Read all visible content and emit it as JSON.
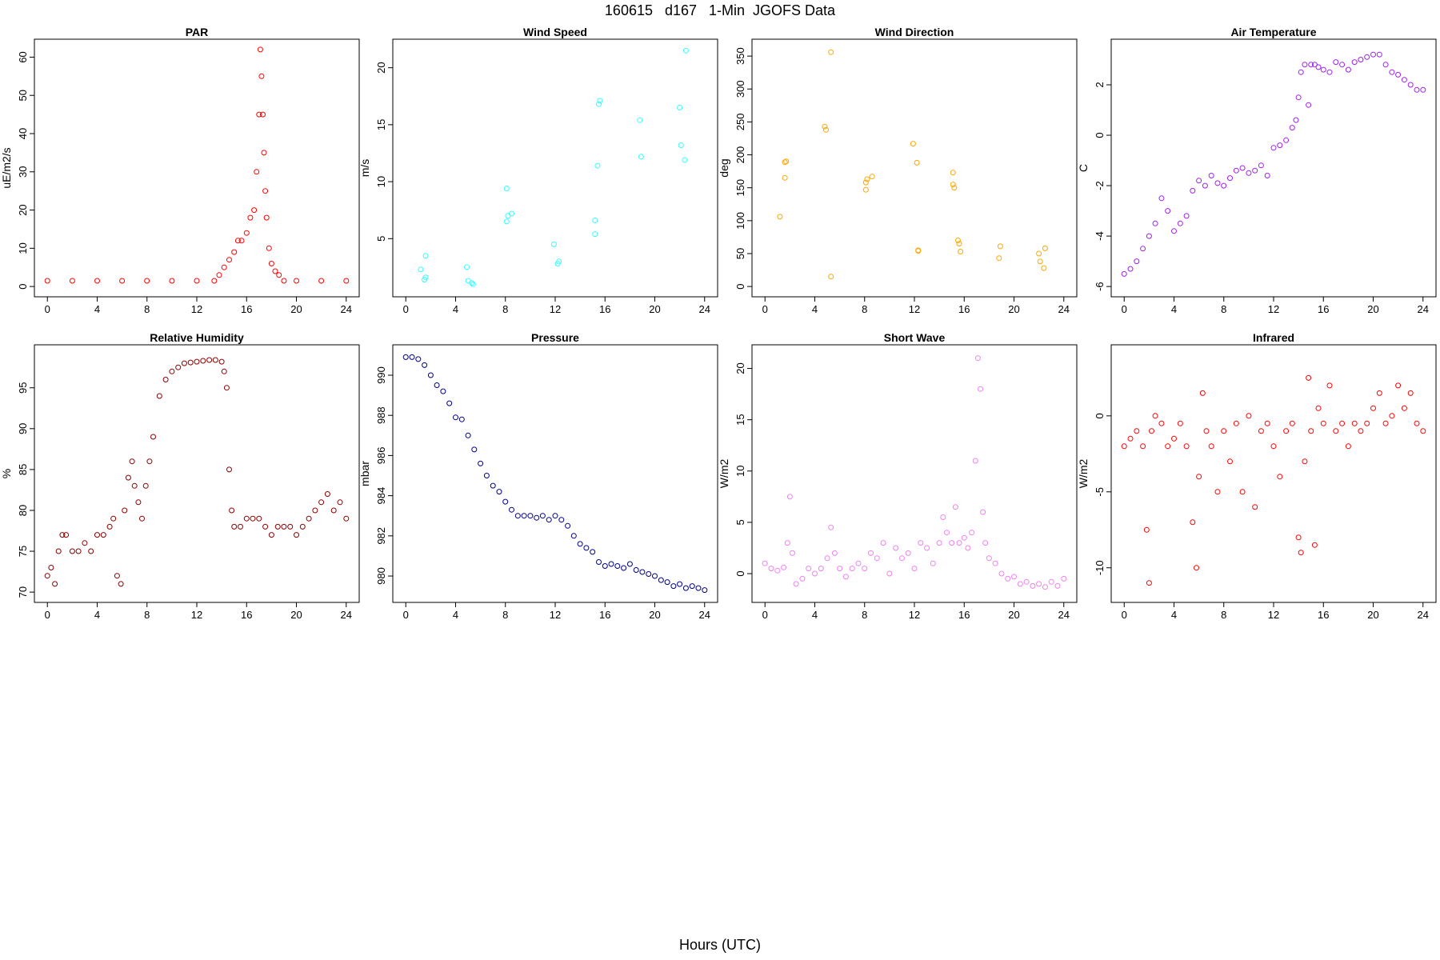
{
  "title": "160615   d167   1-Min  JGOFS Data",
  "xlabel": "Hours (UTC)",
  "chart_data": [
    {
      "type": "scatter",
      "title": "PAR",
      "ylabel": "uE/m2/s",
      "color": "#ff0000",
      "xlim": [
        0,
        24
      ],
      "ylim": [
        0,
        62
      ],
      "xticks": [
        0,
        4,
        8,
        12,
        16,
        20,
        24
      ],
      "yticks": [
        0,
        10,
        20,
        30,
        40,
        50,
        60
      ],
      "x": [
        0,
        2,
        4,
        6,
        8,
        10,
        12,
        13.4,
        13.8,
        14.2,
        14.6,
        15,
        15.3,
        15.6,
        16,
        16.3,
        16.6,
        16.8,
        17,
        17.1,
        17.2,
        17.3,
        17.4,
        17.5,
        17.6,
        17.8,
        18,
        18.3,
        18.6,
        19,
        20,
        22,
        24
      ],
      "y": [
        1.5,
        1.5,
        1.5,
        1.5,
        1.5,
        1.5,
        1.5,
        1.5,
        3,
        5,
        7,
        9,
        12,
        12,
        14,
        18,
        20,
        30,
        45,
        62,
        55,
        45,
        35,
        25,
        18,
        10,
        6,
        4,
        3,
        1.5,
        1.5,
        1.5,
        1.5
      ]
    },
    {
      "type": "scatter",
      "title": "Wind Speed",
      "ylabel": "m/s",
      "color": "#33ffff",
      "xlim": [
        0,
        24
      ],
      "ylim": [
        0.8,
        21.6
      ],
      "xticks": [
        0,
        4,
        8,
        12,
        16,
        20,
        24
      ],
      "yticks": [
        5,
        10,
        15,
        20
      ],
      "x": [
        1.2,
        1.6,
        1.6,
        1.5,
        4.9,
        5.0,
        5.3,
        5.4,
        8.1,
        8.1,
        8.2,
        8.5,
        11.9,
        12.2,
        12.3,
        15.2,
        15.2,
        15.4,
        15.5,
        15.6,
        18.8,
        18.9,
        22.0,
        22.1,
        22.4,
        22.5
      ],
      "y": [
        2.3,
        3.5,
        1.6,
        1.4,
        2.5,
        1.3,
        1.1,
        1.0,
        9.4,
        6.5,
        7.0,
        7.2,
        4.5,
        2.8,
        3.0,
        6.6,
        5.4,
        11.4,
        16.8,
        17.1,
        15.4,
        12.2,
        16.5,
        13.2,
        11.9,
        21.5
      ]
    },
    {
      "type": "scatter",
      "title": "Wind Direction",
      "ylabel": "deg",
      "color": "#ffa500",
      "xlim": [
        0,
        24
      ],
      "ylim": [
        0,
        360
      ],
      "xticks": [
        0,
        4,
        8,
        12,
        16,
        20,
        24
      ],
      "yticks": [
        0,
        50,
        100,
        150,
        200,
        250,
        300,
        350
      ],
      "x": [
        1.2,
        1.6,
        1.7,
        1.6,
        4.8,
        4.9,
        5.3,
        5.3,
        8.1,
        8.1,
        8.2,
        8.6,
        11.9,
        12.2,
        12.3,
        12.3,
        15.1,
        15.1,
        15.2,
        15.5,
        15.6,
        15.7,
        18.8,
        18.9,
        22.0,
        22.1,
        22.4,
        22.5
      ],
      "y": [
        106,
        165,
        190,
        189,
        243,
        238,
        15,
        356,
        147,
        158,
        163,
        167,
        217,
        188,
        55,
        54,
        173,
        155,
        150,
        70,
        65,
        53,
        43,
        61,
        50,
        38,
        28,
        58
      ]
    },
    {
      "type": "scatter",
      "title": "Air Temperature",
      "ylabel": "C",
      "color": "#a020f0",
      "xlim": [
        0,
        24
      ],
      "ylim": [
        -6,
        3.4
      ],
      "xticks": [
        0,
        4,
        8,
        12,
        16,
        20,
        24
      ],
      "yticks": [
        -6,
        -4,
        -2,
        0,
        2
      ],
      "x": [
        0,
        0.5,
        1,
        1.5,
        2,
        2.5,
        3,
        3.5,
        4,
        4.5,
        5,
        5.5,
        6,
        6.5,
        7,
        7.5,
        8,
        8.5,
        9,
        9.5,
        10,
        10.5,
        11,
        11.5,
        12,
        12.5,
        13,
        13.5,
        13.8,
        14,
        14.2,
        14.5,
        14.8,
        15,
        15.3,
        15.6,
        16,
        16.5,
        17,
        17.5,
        18,
        18.5,
        19,
        19.5,
        20,
        20.5,
        21,
        21.5,
        22,
        22.5,
        23,
        23.5,
        24
      ],
      "y": [
        -5.5,
        -5.3,
        -5,
        -4.5,
        -4,
        -3.5,
        -2.5,
        -3,
        -3.8,
        -3.5,
        -3.2,
        -2.2,
        -1.8,
        -2,
        -1.6,
        -1.9,
        -2,
        -1.7,
        -1.4,
        -1.3,
        -1.5,
        -1.4,
        -1.2,
        -1.6,
        -0.5,
        -0.4,
        -0.2,
        0.3,
        0.6,
        1.5,
        2.5,
        2.8,
        1.2,
        2.8,
        2.8,
        2.7,
        2.6,
        2.5,
        2.9,
        2.8,
        2.6,
        2.9,
        3.0,
        3.1,
        3.2,
        3.2,
        2.8,
        2.5,
        2.4,
        2.2,
        2.0,
        1.8,
        1.8
      ]
    },
    {
      "type": "scatter",
      "title": "Relative Humidity",
      "ylabel": "%",
      "color": "#8b0000",
      "xlim": [
        0,
        24
      ],
      "ylim": [
        70,
        99
      ],
      "xticks": [
        0,
        4,
        8,
        12,
        16,
        20,
        24
      ],
      "yticks": [
        70,
        75,
        80,
        85,
        90,
        95
      ],
      "x": [
        0,
        0.3,
        0.6,
        0.9,
        1.2,
        1.5,
        2,
        2.5,
        3,
        3.5,
        4,
        4.5,
        5,
        5.3,
        5.6,
        5.9,
        6.2,
        6.5,
        6.8,
        7,
        7.3,
        7.6,
        7.9,
        8.2,
        8.5,
        9,
        9.5,
        10,
        10.5,
        11,
        11.5,
        12,
        12.5,
        13,
        13.5,
        14,
        14.2,
        14.4,
        14.6,
        14.8,
        15,
        15.5,
        16,
        16.5,
        17,
        17.5,
        18,
        18.5,
        19,
        19.5,
        20,
        20.5,
        21,
        21.5,
        22,
        22.5,
        23,
        23.5,
        24
      ],
      "y": [
        72,
        73,
        71,
        75,
        77,
        77,
        75,
        75,
        76,
        75,
        77,
        77,
        78,
        79,
        72,
        71,
        80,
        84,
        86,
        83,
        81,
        79,
        83,
        86,
        89,
        94,
        96,
        97,
        97.5,
        98,
        98.1,
        98.2,
        98.3,
        98.4,
        98.4,
        98.2,
        97,
        95,
        85,
        80,
        78,
        78,
        79,
        79,
        79,
        78,
        77,
        78,
        78,
        78,
        77,
        78,
        79,
        80,
        81,
        82,
        80,
        81,
        79
      ]
    },
    {
      "type": "scatter",
      "title": "Pressure",
      "ylabel": "mbar",
      "color": "#00008b",
      "xlim": [
        0,
        24
      ],
      "ylim": [
        979.2,
        991
      ],
      "xticks": [
        0,
        4,
        8,
        12,
        16,
        20,
        24
      ],
      "yticks": [
        980,
        982,
        984,
        986,
        988,
        990
      ],
      "x": [
        0,
        0.5,
        1,
        1.5,
        2,
        2.5,
        3,
        3.5,
        4,
        4.5,
        5,
        5.5,
        6,
        6.5,
        7,
        7.5,
        8,
        8.5,
        9,
        9.5,
        10,
        10.5,
        11,
        11.5,
        12,
        12.5,
        13,
        13.5,
        14,
        14.5,
        15,
        15.5,
        16,
        16.5,
        17,
        17.5,
        18,
        18.5,
        19,
        19.5,
        20,
        20.5,
        21,
        21.5,
        22,
        22.5,
        23,
        23.5,
        24
      ],
      "y": [
        990.9,
        990.9,
        990.8,
        990.5,
        990,
        989.5,
        989.2,
        988.6,
        987.9,
        987.8,
        987,
        986.3,
        985.6,
        985,
        984.5,
        984.2,
        983.7,
        983.3,
        983,
        983,
        983,
        982.9,
        983,
        982.8,
        983,
        982.8,
        982.5,
        982,
        981.6,
        981.4,
        981.2,
        980.7,
        980.5,
        980.6,
        980.5,
        980.4,
        980.6,
        980.3,
        980.2,
        980.1,
        980,
        979.8,
        979.7,
        979.5,
        979.6,
        979.4,
        979.5,
        979.4,
        979.3
      ]
    },
    {
      "type": "scatter",
      "title": "Short Wave",
      "ylabel": "W/m2",
      "color": "#ee82ee",
      "xlim": [
        0,
        24
      ],
      "ylim": [
        -1.8,
        21.3
      ],
      "xticks": [
        0,
        4,
        8,
        12,
        16,
        20,
        24
      ],
      "yticks": [
        0,
        5,
        10,
        15,
        20
      ],
      "x": [
        0,
        0.5,
        1,
        1.5,
        1.8,
        2,
        2.2,
        2.5,
        3,
        3.5,
        4,
        4.5,
        5,
        5.3,
        5.6,
        6,
        6.5,
        7,
        7.5,
        8,
        8.5,
        9,
        9.5,
        10,
        10.5,
        11,
        11.5,
        12,
        12.5,
        13,
        13.5,
        14,
        14.3,
        14.6,
        15,
        15.3,
        15.6,
        16,
        16.3,
        16.6,
        16.9,
        17.1,
        17.3,
        17.5,
        17.7,
        18,
        18.5,
        19,
        19.5,
        20,
        20.5,
        21,
        21.5,
        22,
        22.5,
        23,
        23.5,
        24
      ],
      "y": [
        1,
        0.5,
        0.3,
        0.6,
        3,
        7.5,
        2,
        -1,
        -0.5,
        0.5,
        0,
        0.5,
        1.5,
        4.5,
        2,
        0.5,
        -0.3,
        0.5,
        1,
        0.5,
        2,
        1.5,
        3,
        0,
        2.5,
        1.5,
        2,
        0.5,
        3,
        2.5,
        1,
        3,
        5.5,
        4,
        3,
        6.5,
        3,
        3.5,
        2.5,
        4,
        11,
        21,
        18,
        6,
        3,
        1.5,
        1,
        0,
        -0.5,
        -0.3,
        -1,
        -0.8,
        -1.2,
        -1,
        -1.3,
        -0.8,
        -1.2,
        -0.5
      ]
    },
    {
      "type": "scatter",
      "title": "Infrared",
      "ylabel": "W/m2",
      "color": "#ff0000",
      "xlim": [
        0,
        24
      ],
      "ylim": [
        -11.6,
        4
      ],
      "xticks": [
        0,
        4,
        8,
        12,
        16,
        20,
        24
      ],
      "yticks": [
        -10,
        -5,
        0
      ],
      "x": [
        0,
        0.5,
        1,
        1.5,
        1.8,
        2,
        2.2,
        2.5,
        3,
        3.5,
        4,
        4.5,
        5,
        5.5,
        5.8,
        6,
        6.3,
        6.6,
        7,
        7.5,
        8,
        8.5,
        9,
        9.5,
        10,
        10.5,
        11,
        11.5,
        12,
        12.5,
        13,
        13.5,
        14,
        14.2,
        14.5,
        14.8,
        15,
        15.3,
        15.6,
        16,
        16.5,
        17,
        17.5,
        18,
        18.5,
        19,
        19.5,
        20,
        20.5,
        21,
        21.5,
        22,
        22.5,
        23,
        23.5,
        24
      ],
      "y": [
        -2,
        -1.5,
        -1,
        -2,
        -7.5,
        -11,
        -1,
        0,
        -0.5,
        -2,
        -1.5,
        -0.5,
        -2,
        -7,
        -10,
        -4,
        1.5,
        -1,
        -2,
        -5,
        -1,
        -3,
        -0.5,
        -5,
        0,
        -6,
        -1,
        -0.5,
        -2,
        -4,
        -1,
        -0.5,
        -8,
        -9,
        -3,
        2.5,
        -1,
        -8.5,
        0.5,
        -0.5,
        2,
        -1,
        -0.5,
        -2,
        -0.5,
        -1,
        -0.5,
        0.5,
        1.5,
        -0.5,
        0,
        2,
        0.5,
        1.5,
        -0.5,
        -1
      ]
    }
  ]
}
